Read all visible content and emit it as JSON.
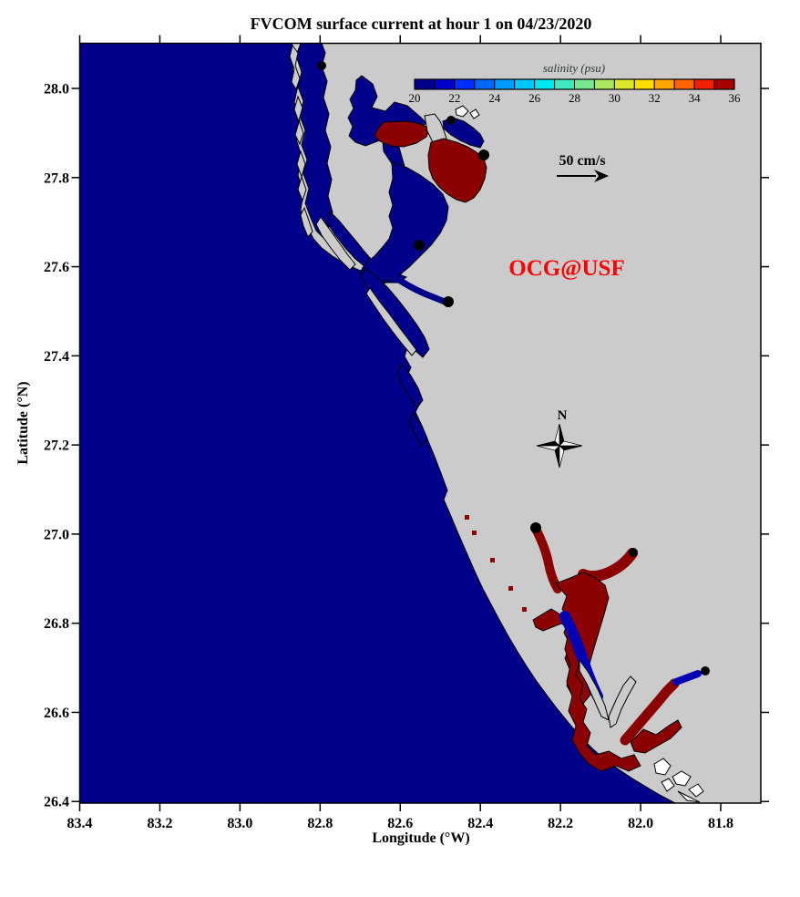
{
  "title": "FVCOM surface current at hour 1 on 04/23/2020",
  "watermark": "OCG@USF",
  "scale_arrow": {
    "label": "50 cm/s"
  },
  "compass_label": "N",
  "x_axis": {
    "label": "Longitude (°W)",
    "ticks": [
      "83.4",
      "83.2",
      "83.0",
      "82.8",
      "82.6",
      "82.4",
      "82.2",
      "82.0",
      "81.8"
    ]
  },
  "y_axis": {
    "label": "Latitude (°N)",
    "ticks": [
      "28.0",
      "27.8",
      "27.6",
      "27.4",
      "27.2",
      "27.0",
      "26.8",
      "26.6",
      "26.4"
    ]
  },
  "colorbar": {
    "label": "salinity (psu)",
    "ticks": [
      "20",
      "22",
      "24",
      "26",
      "28",
      "30",
      "32",
      "34",
      "36"
    ],
    "colors": [
      "#00008B",
      "#0000CD",
      "#0030FF",
      "#0068FF",
      "#009CFF",
      "#00C8FF",
      "#00E8F0",
      "#40E8C0",
      "#78E890",
      "#ACE85C",
      "#DCE628",
      "#FFDC00",
      "#FFA500",
      "#FF6400",
      "#F02000",
      "#A80000"
    ]
  },
  "colors": {
    "ocean": "#00008B",
    "inner_channel": "#0000B4",
    "land": "#CBCBCB",
    "estuary": "#8B0000",
    "island": "#FFFFFF",
    "frame": "#000000",
    "watermark_red": "#FF0000",
    "background": "#FFFFFF"
  },
  "chart_data": {
    "type": "map",
    "title": "FVCOM surface current at hour 1 on 04/23/2020",
    "xlabel": "Longitude (°W)",
    "ylabel": "Latitude (°N)",
    "xlim_deg_west": [
      83.4,
      81.7
    ],
    "ylim_deg_north": [
      26.4,
      28.1
    ],
    "x_ticks": [
      83.4,
      83.2,
      83.0,
      82.8,
      82.6,
      82.4,
      82.2,
      82.0,
      81.8
    ],
    "y_ticks": [
      28.0,
      27.8,
      27.6,
      27.4,
      27.2,
      27.0,
      26.8,
      26.6,
      26.4
    ],
    "grid": false,
    "colorbar": {
      "label": "salinity (psu)",
      "range": [
        20,
        36
      ],
      "tick_interval": 2,
      "segments": 16,
      "position": "top-right"
    },
    "vector_scale_label": "50 cm/s",
    "annotations": [
      "OCG@USF",
      "N"
    ],
    "regions": [
      {
        "kind": "open-gulf-water",
        "color": "#00008B"
      },
      {
        "kind": "bay-water",
        "color": "#00008B"
      },
      {
        "kind": "estuary-channel-water",
        "color": "#0000B4"
      },
      {
        "kind": "low-salinity-estuary-water",
        "color": "#8B0000"
      },
      {
        "kind": "land",
        "color": "#CBCBCB"
      },
      {
        "kind": "small-islands",
        "color": "#FFFFFF"
      }
    ]
  }
}
